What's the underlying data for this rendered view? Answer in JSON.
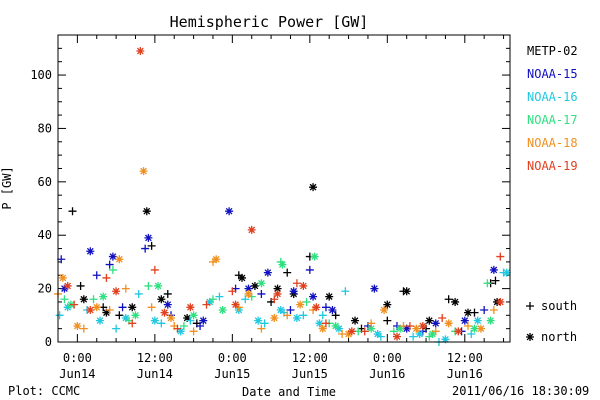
{
  "chart_data": {
    "type": "scatter",
    "title": "Hemispheric Power [GW]",
    "ylabel": "P [GW]",
    "xlabel": "Date and Time",
    "ylim": [
      0,
      115
    ],
    "xlim": [
      "2011-06-13T21:00",
      "2011-06-16T19:00"
    ],
    "y_ticks": [
      0,
      20,
      40,
      60,
      80,
      100
    ],
    "x_ticks": [
      {
        "at": "2011-06-14T00:00",
        "time": "0:00",
        "date": "Jun14"
      },
      {
        "at": "2011-06-14T12:00",
        "time": "12:00",
        "date": "Jun14"
      },
      {
        "at": "2011-06-15T00:00",
        "time": "0:00",
        "date": "Jun15"
      },
      {
        "at": "2011-06-15T12:00",
        "time": "12:00",
        "date": "Jun15"
      },
      {
        "at": "2011-06-16T00:00",
        "time": "0:00",
        "date": "Jun16"
      },
      {
        "at": "2011-06-16T12:00",
        "time": "12:00",
        "date": "Jun16"
      }
    ],
    "legend_position": "right",
    "symbol_legend": [
      {
        "symbol": "+",
        "label": "south"
      },
      {
        "symbol": "*",
        "label": "north"
      }
    ],
    "series": [
      {
        "name": "METP-02",
        "color": "#000000",
        "south": [
          [
            "2011-06-13T23:15",
            49
          ],
          [
            "2011-06-14T00:30",
            21
          ],
          [
            "2011-06-14T04:00",
            13
          ],
          [
            "2011-06-14T06:30",
            10
          ],
          [
            "2011-06-14T11:30",
            36
          ],
          [
            "2011-06-14T14:00",
            18
          ],
          [
            "2011-06-14T18:30",
            7
          ],
          [
            "2011-06-15T01:00",
            25
          ],
          [
            "2011-06-15T06:00",
            15
          ],
          [
            "2011-06-15T08:30",
            26
          ],
          [
            "2011-06-15T12:00",
            32
          ],
          [
            "2011-06-15T16:00",
            10
          ],
          [
            "2011-06-15T20:00",
            5
          ],
          [
            "2011-06-16T00:00",
            8
          ],
          [
            "2011-06-16T02:30",
            19
          ],
          [
            "2011-06-16T06:00",
            5
          ],
          [
            "2011-06-16T09:30",
            16
          ],
          [
            "2011-06-16T13:30",
            11
          ],
          [
            "2011-06-16T16:00",
            22
          ],
          [
            "2011-06-16T16:45",
            23
          ]
        ],
        "north": [
          [
            "2011-06-14T01:00",
            16
          ],
          [
            "2011-06-14T04:30",
            11
          ],
          [
            "2011-06-14T08:30",
            13
          ],
          [
            "2011-06-14T10:45",
            49
          ],
          [
            "2011-06-14T13:00",
            16
          ],
          [
            "2011-06-14T17:00",
            9
          ],
          [
            "2011-06-15T01:30",
            24
          ],
          [
            "2011-06-15T03:30",
            21
          ],
          [
            "2011-06-15T07:00",
            20
          ],
          [
            "2011-06-15T09:30",
            18
          ],
          [
            "2011-06-15T12:30",
            58
          ],
          [
            "2011-06-15T15:00",
            17
          ],
          [
            "2011-06-15T19:00",
            8
          ],
          [
            "2011-06-16T00:00",
            14
          ],
          [
            "2011-06-16T03:00",
            19
          ],
          [
            "2011-06-16T06:30",
            8
          ],
          [
            "2011-06-16T10:30",
            15
          ],
          [
            "2011-06-16T12:30",
            11
          ],
          [
            "2011-06-16T17:00",
            15
          ]
        ]
      },
      {
        "name": "NOAA-15",
        "color": "#1010c0",
        "south": [
          [
            "2011-06-13T21:30",
            31
          ],
          [
            "2011-06-14T03:00",
            25
          ],
          [
            "2011-06-14T05:00",
            29
          ],
          [
            "2011-06-14T07:00",
            13
          ],
          [
            "2011-06-14T10:30",
            35
          ],
          [
            "2011-06-14T14:30",
            10
          ],
          [
            "2011-06-14T19:00",
            6
          ],
          [
            "2011-06-15T00:30",
            20
          ],
          [
            "2011-06-15T04:30",
            18
          ],
          [
            "2011-06-15T09:00",
            12
          ],
          [
            "2011-06-15T12:00",
            27
          ],
          [
            "2011-06-15T14:30",
            13
          ],
          [
            "2011-06-15T21:00",
            6
          ],
          [
            "2011-06-16T01:30",
            6
          ],
          [
            "2011-06-16T05:30",
            4
          ],
          [
            "2011-06-16T11:30",
            4
          ],
          [
            "2011-06-16T15:00",
            12
          ]
        ],
        "north": [
          [
            "2011-06-13T22:00",
            20
          ],
          [
            "2011-06-14T02:00",
            34
          ],
          [
            "2011-06-14T05:30",
            32
          ],
          [
            "2011-06-14T11:00",
            39
          ],
          [
            "2011-06-14T14:00",
            14
          ],
          [
            "2011-06-14T19:30",
            8
          ],
          [
            "2011-06-14T23:30",
            49
          ],
          [
            "2011-06-15T02:30",
            20
          ],
          [
            "2011-06-15T05:30",
            26
          ],
          [
            "2011-06-15T09:30",
            19
          ],
          [
            "2011-06-15T12:30",
            17
          ],
          [
            "2011-06-15T15:30",
            12
          ],
          [
            "2011-06-15T22:00",
            20
          ],
          [
            "2011-06-16T03:00",
            5
          ],
          [
            "2011-06-16T07:30",
            7
          ],
          [
            "2011-06-16T12:00",
            8
          ],
          [
            "2011-06-16T16:30",
            27
          ]
        ]
      },
      {
        "name": "NOAA-16",
        "color": "#20c8e0",
        "south": [
          [
            "2011-06-13T21:15",
            10
          ],
          [
            "2011-06-14T01:30",
            12
          ],
          [
            "2011-06-14T06:00",
            5
          ],
          [
            "2011-06-14T09:30",
            18
          ],
          [
            "2011-06-14T13:00",
            7
          ],
          [
            "2011-06-14T17:30",
            8
          ],
          [
            "2011-06-14T22:00",
            17
          ],
          [
            "2011-06-15T02:00",
            16
          ],
          [
            "2011-06-15T05:00",
            7
          ],
          [
            "2011-06-15T08:00",
            11
          ],
          [
            "2011-06-15T11:00",
            10
          ],
          [
            "2011-06-15T14:00",
            10
          ],
          [
            "2011-06-15T17:30",
            19
          ],
          [
            "2011-06-15T23:00",
            2
          ],
          [
            "2011-06-16T04:00",
            2
          ],
          [
            "2011-06-16T08:00",
            0
          ],
          [
            "2011-06-16T13:00",
            3
          ],
          [
            "2011-06-16T18:00",
            26
          ]
        ],
        "north": [
          [
            "2011-06-13T22:30",
            13
          ],
          [
            "2011-06-14T03:30",
            8
          ],
          [
            "2011-06-14T07:30",
            9
          ],
          [
            "2011-06-14T12:00",
            8
          ],
          [
            "2011-06-14T16:00",
            4
          ],
          [
            "2011-06-14T20:30",
            15
          ],
          [
            "2011-06-15T01:00",
            12
          ],
          [
            "2011-06-15T04:00",
            8
          ],
          [
            "2011-06-15T07:30",
            12
          ],
          [
            "2011-06-15T10:00",
            9
          ],
          [
            "2011-06-15T13:30",
            7
          ],
          [
            "2011-06-15T16:30",
            5
          ],
          [
            "2011-06-15T22:30",
            3
          ],
          [
            "2011-06-16T05:00",
            3
          ],
          [
            "2011-06-16T09:00",
            1
          ],
          [
            "2011-06-16T14:00",
            8
          ],
          [
            "2011-06-16T18:30",
            26
          ]
        ]
      },
      {
        "name": "NOAA-17",
        "color": "#30e080",
        "south": [
          [
            "2011-06-13T22:00",
            16
          ],
          [
            "2011-06-14T02:30",
            16
          ],
          [
            "2011-06-14T05:30",
            27
          ],
          [
            "2011-06-14T08:00",
            8
          ],
          [
            "2011-06-14T11:00",
            21
          ],
          [
            "2011-06-14T16:30",
            6
          ],
          [
            "2011-06-14T21:00",
            16
          ],
          [
            "2011-06-15T03:00",
            17
          ],
          [
            "2011-06-15T07:30",
            30
          ],
          [
            "2011-06-15T11:30",
            15
          ],
          [
            "2011-06-15T15:00",
            7
          ],
          [
            "2011-06-15T19:30",
            4
          ],
          [
            "2011-06-16T01:00",
            4
          ],
          [
            "2011-06-16T06:30",
            2
          ],
          [
            "2011-06-16T10:30",
            4
          ],
          [
            "2011-06-16T15:30",
            22
          ]
        ],
        "north": [
          [
            "2011-06-13T23:00",
            14
          ],
          [
            "2011-06-14T04:00",
            17
          ],
          [
            "2011-06-14T09:00",
            10
          ],
          [
            "2011-06-14T12:30",
            21
          ],
          [
            "2011-06-14T18:00",
            10
          ],
          [
            "2011-06-14T22:30",
            12
          ],
          [
            "2011-06-15T04:30",
            22
          ],
          [
            "2011-06-15T07:45",
            29
          ],
          [
            "2011-06-15T12:45",
            32
          ],
          [
            "2011-06-15T16:00",
            6
          ],
          [
            "2011-06-15T21:30",
            5
          ],
          [
            "2011-06-16T02:00",
            5
          ],
          [
            "2011-06-16T07:00",
            3
          ],
          [
            "2011-06-16T13:30",
            5
          ],
          [
            "2011-06-16T16:00",
            8
          ]
        ]
      },
      {
        "name": "NOAA-18",
        "color": "#f09020",
        "south": [
          [
            "2011-06-13T21:00",
            18
          ],
          [
            "2011-06-14T01:00",
            5
          ],
          [
            "2011-06-14T05:00",
            12
          ],
          [
            "2011-06-14T07:30",
            20
          ],
          [
            "2011-06-14T11:30",
            13
          ],
          [
            "2011-06-14T15:00",
            6
          ],
          [
            "2011-06-14T18:00",
            4
          ],
          [
            "2011-06-14T21:00",
            30
          ],
          [
            "2011-06-15T01:00",
            13
          ],
          [
            "2011-06-15T04:30",
            5
          ],
          [
            "2011-06-15T08:30",
            10
          ],
          [
            "2011-06-15T12:30",
            12
          ],
          [
            "2011-06-15T17:00",
            3
          ],
          [
            "2011-06-15T21:30",
            7
          ],
          [
            "2011-06-16T02:30",
            6
          ],
          [
            "2011-06-16T07:30",
            4
          ],
          [
            "2011-06-16T12:30",
            6
          ],
          [
            "2011-06-16T16:30",
            12
          ]
        ],
        "north": [
          [
            "2011-06-13T21:45",
            24
          ],
          [
            "2011-06-14T00:00",
            6
          ],
          [
            "2011-06-14T03:00",
            13
          ],
          [
            "2011-06-14T06:30",
            31
          ],
          [
            "2011-06-14T10:15",
            64
          ],
          [
            "2011-06-14T14:30",
            9
          ],
          [
            "2011-06-14T21:30",
            31
          ],
          [
            "2011-06-15T02:30",
            18
          ],
          [
            "2011-06-15T06:30",
            9
          ],
          [
            "2011-06-15T10:30",
            14
          ],
          [
            "2011-06-15T14:00",
            5
          ],
          [
            "2011-06-15T18:00",
            3
          ],
          [
            "2011-06-15T23:30",
            12
          ],
          [
            "2011-06-16T04:30",
            5
          ],
          [
            "2011-06-16T09:30",
            7
          ],
          [
            "2011-06-16T14:30",
            5
          ]
        ]
      },
      {
        "name": "NOAA-19",
        "color": "#e04020",
        "south": [
          [
            "2011-06-13T23:30",
            14
          ],
          [
            "2011-06-14T04:30",
            24
          ],
          [
            "2011-06-14T08:30",
            7
          ],
          [
            "2011-06-14T12:00",
            27
          ],
          [
            "2011-06-14T15:30",
            5
          ],
          [
            "2011-06-14T20:00",
            14
          ],
          [
            "2011-06-15T00:00",
            19
          ],
          [
            "2011-06-15T06:30",
            16
          ],
          [
            "2011-06-15T10:00",
            22
          ],
          [
            "2011-06-15T14:30",
            7
          ],
          [
            "2011-06-15T20:30",
            4
          ],
          [
            "2011-06-16T03:30",
            6
          ],
          [
            "2011-06-16T08:30",
            9
          ],
          [
            "2011-06-16T17:30",
            32
          ]
        ],
        "north": [
          [
            "2011-06-13T22:30",
            21
          ],
          [
            "2011-06-14T02:00",
            12
          ],
          [
            "2011-06-14T06:00",
            19
          ],
          [
            "2011-06-14T09:45",
            109
          ],
          [
            "2011-06-14T13:30",
            11
          ],
          [
            "2011-06-14T17:30",
            13
          ],
          [
            "2011-06-15T00:30",
            14
          ],
          [
            "2011-06-15T03:00",
            42
          ],
          [
            "2011-06-15T07:00",
            18
          ],
          [
            "2011-06-15T11:00",
            21
          ],
          [
            "2011-06-15T13:00",
            13
          ],
          [
            "2011-06-15T18:30",
            4
          ],
          [
            "2011-06-16T01:30",
            2
          ],
          [
            "2011-06-16T05:30",
            6
          ],
          [
            "2011-06-16T11:00",
            4
          ],
          [
            "2011-06-16T17:30",
            15
          ]
        ]
      }
    ]
  },
  "footer": {
    "left": "Plot: CCMC",
    "right": "2011/06/16 18:30:09"
  }
}
